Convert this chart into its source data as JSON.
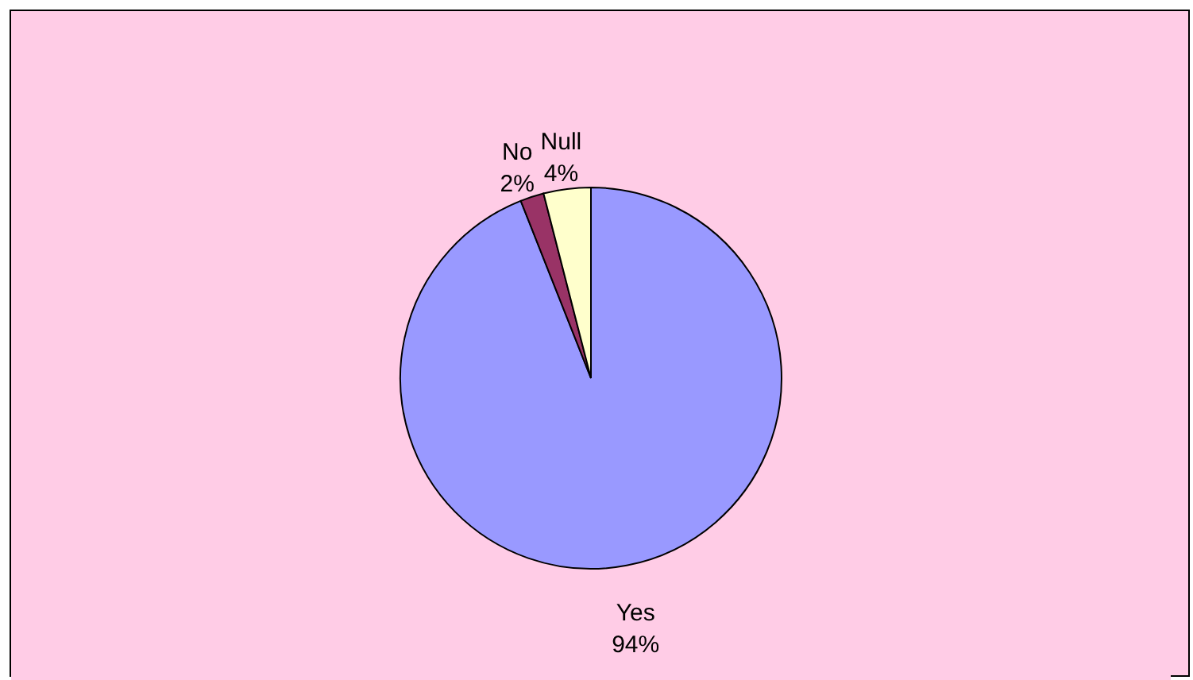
{
  "chart_data": {
    "type": "pie",
    "categories": [
      "Yes",
      "No",
      "Null"
    ],
    "values": [
      94,
      2,
      4
    ],
    "colors": [
      "#9999ff",
      "#993366",
      "#ffffcc"
    ],
    "value_labels": [
      "94%",
      "2%",
      "4%"
    ],
    "legend": false
  }
}
